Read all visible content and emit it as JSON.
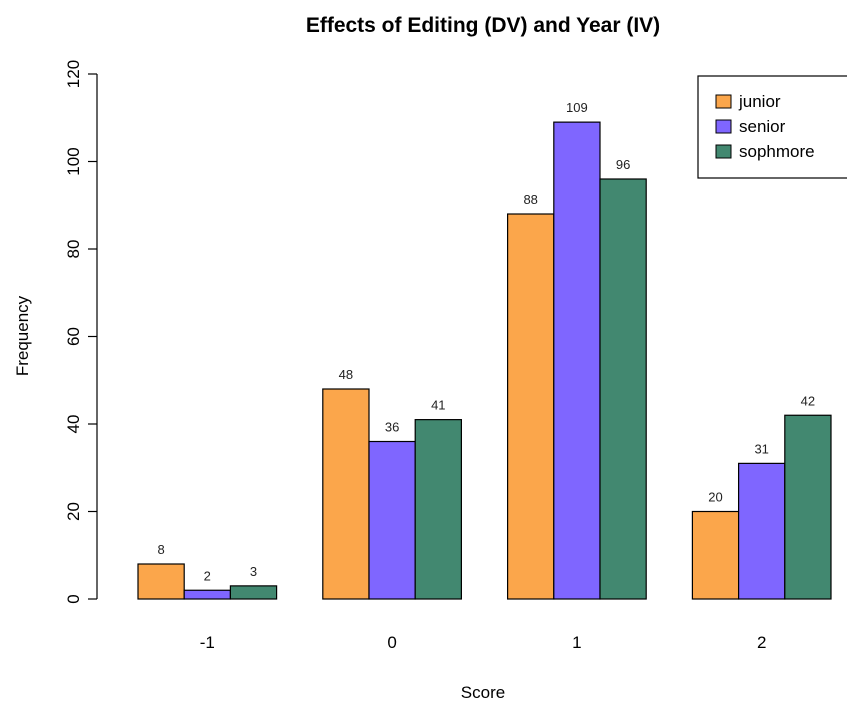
{
  "chart_data": {
    "type": "bar",
    "title": "Effects of Editing (DV) and Year (IV)",
    "xlabel": "Score",
    "ylabel": "Frequency",
    "categories": [
      "-1",
      "0",
      "1",
      "2"
    ],
    "series": [
      {
        "name": "junior",
        "color": "#FBA64B",
        "values": [
          8,
          48,
          88,
          20
        ]
      },
      {
        "name": "senior",
        "color": "#7F66FF",
        "values": [
          2,
          36,
          109,
          31
        ]
      },
      {
        "name": "sophmore",
        "color": "#428870",
        "values": [
          3,
          41,
          96,
          42
        ]
      }
    ],
    "ylim": [
      0,
      120
    ],
    "yticks": [
      "0",
      "20",
      "40",
      "60",
      "80",
      "100",
      "120"
    ],
    "legend_position": "top-right",
    "grid": false
  }
}
